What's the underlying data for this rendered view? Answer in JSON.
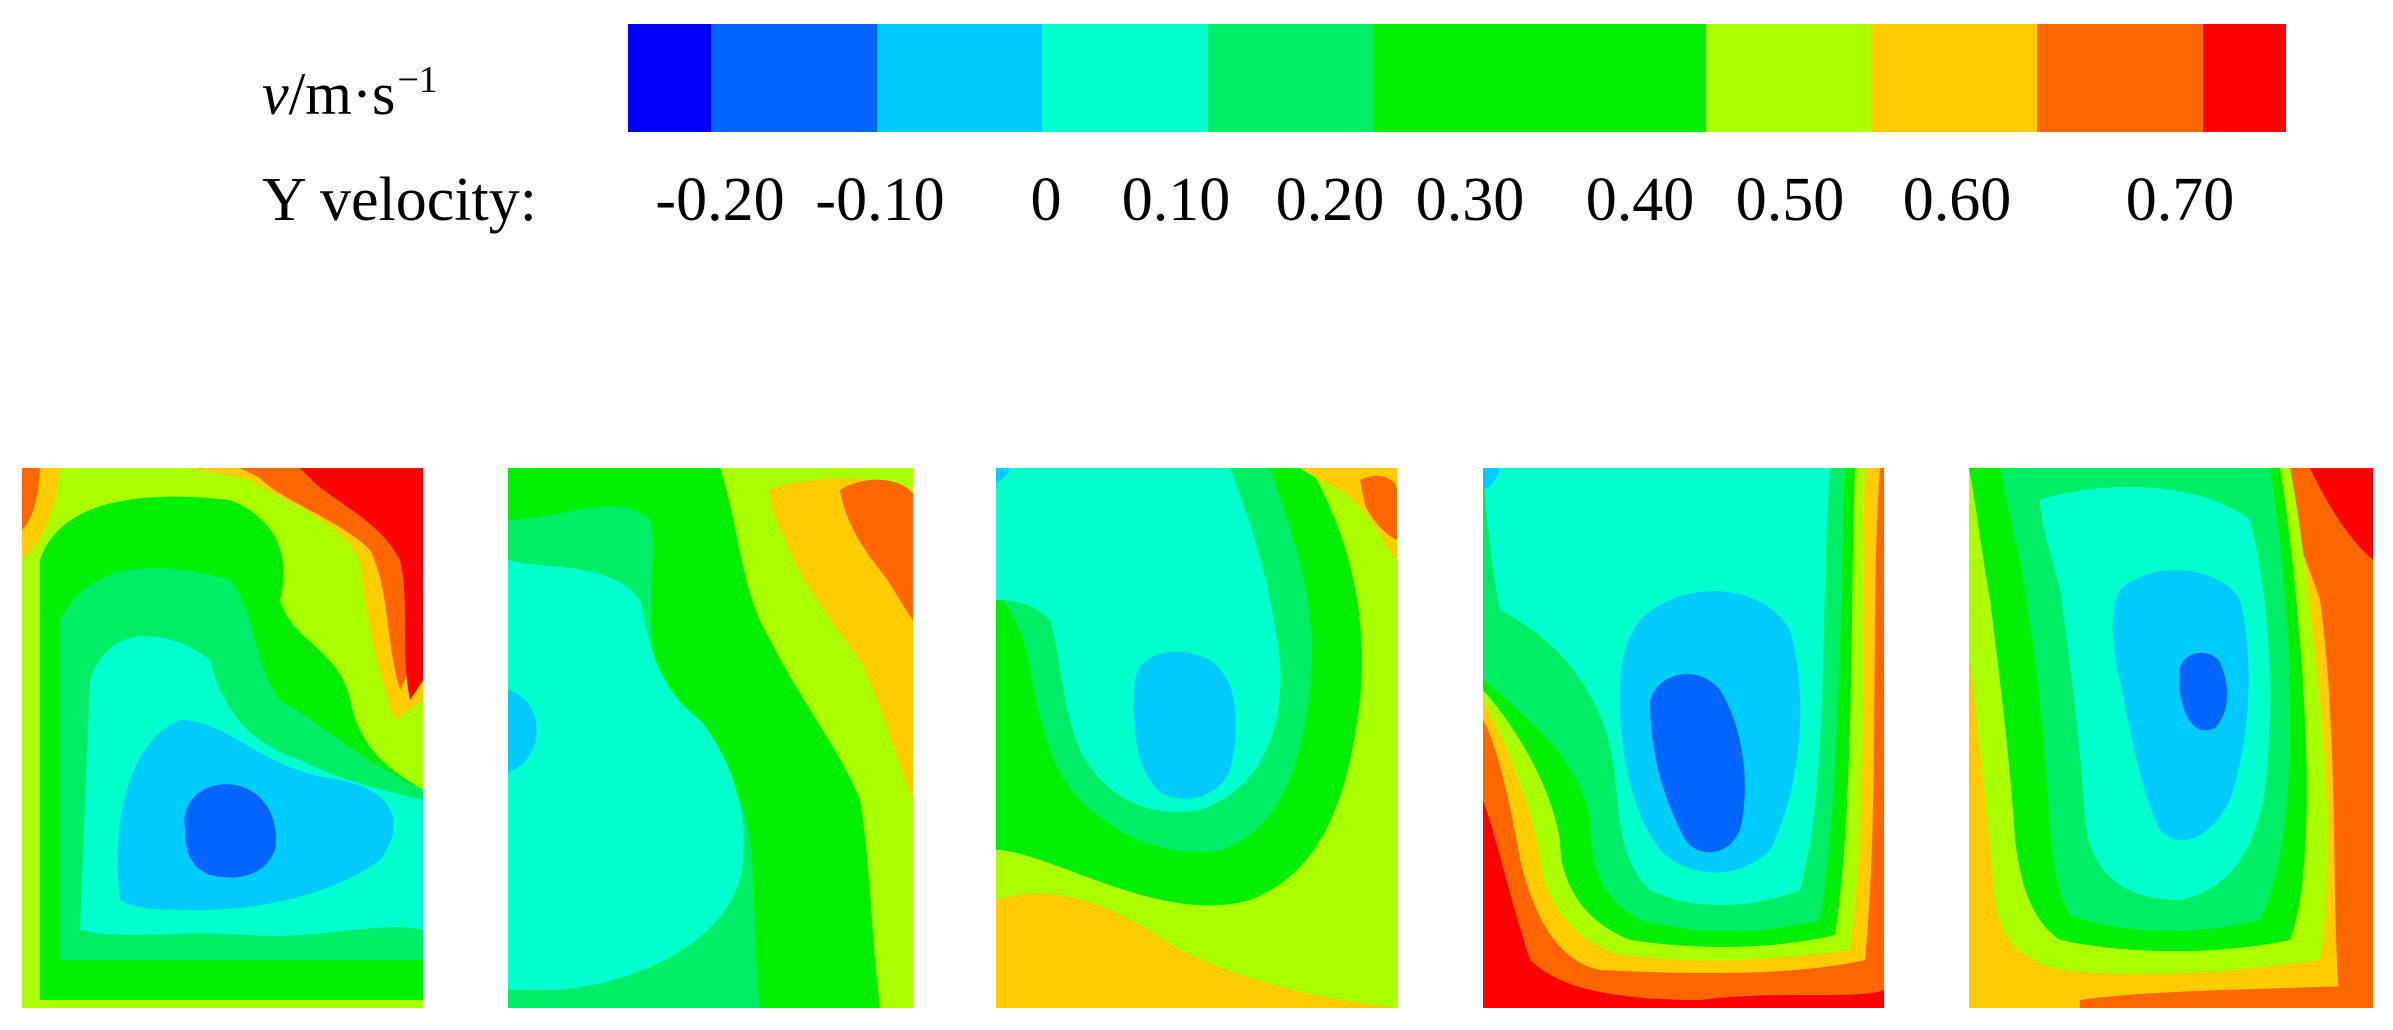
{
  "legend": {
    "unit_symbol": "v",
    "unit_rest": "/m·s",
    "unit_exponent": "−1",
    "quantity_label": "Y velocity:",
    "ticks": [
      "-0.20",
      "-0.10",
      "0",
      "0.10",
      "0.20",
      "0.30",
      "0.40",
      "0.50",
      "0.60",
      "0.70"
    ],
    "bands": [
      {
        "color": "#0000ff",
        "weight": 1
      },
      {
        "color": "#0066ff",
        "weight": 2
      },
      {
        "color": "#00ccff",
        "weight": 2
      },
      {
        "color": "#00ffcc",
        "weight": 2
      },
      {
        "color": "#00ee66",
        "weight": 2
      },
      {
        "color": "#00ee00",
        "weight": 4
      },
      {
        "color": "#aaff00",
        "weight": 2
      },
      {
        "color": "#ffcc00",
        "weight": 2
      },
      {
        "color": "#ff6600",
        "weight": 2
      },
      {
        "color": "#ff0000",
        "weight": 1
      }
    ]
  },
  "palette": {
    "dark_blue": "#0066ff",
    "light_blue": "#00ccff",
    "cyan": "#00ffcc",
    "light_green": "#00ee66",
    "green": "#00ee00",
    "yellow_green": "#aaff00",
    "yellow": "#ffcc00",
    "orange": "#ff6600",
    "red": "#ff0000"
  }
}
